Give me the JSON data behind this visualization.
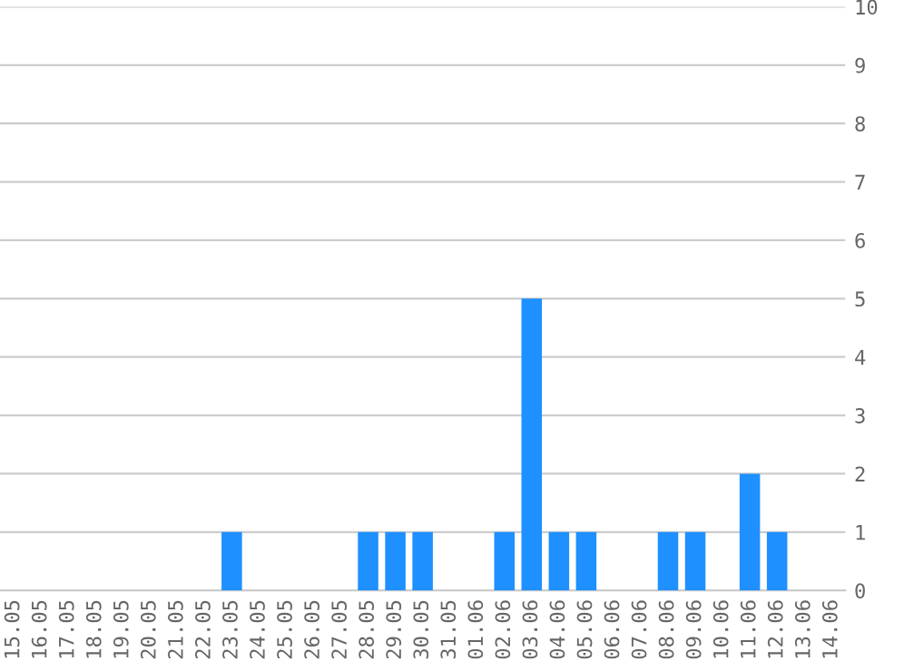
{
  "chart_data": {
    "type": "bar",
    "categories": [
      "15.05",
      "16.05",
      "17.05",
      "18.05",
      "19.05",
      "20.05",
      "21.05",
      "22.05",
      "23.05",
      "24.05",
      "25.05",
      "26.05",
      "27.05",
      "28.05",
      "29.05",
      "30.05",
      "31.05",
      "01.06",
      "02.06",
      "03.06",
      "04.06",
      "05.06",
      "06.06",
      "07.06",
      "08.06",
      "09.06",
      "10.06",
      "11.06",
      "12.06",
      "13.06",
      "14.06"
    ],
    "values": [
      0,
      0,
      0,
      0,
      0,
      0,
      0,
      0,
      1,
      0,
      0,
      0,
      0,
      1,
      1,
      1,
      0,
      0,
      1,
      5,
      1,
      1,
      0,
      0,
      1,
      1,
      0,
      2,
      1,
      0,
      0
    ],
    "color": "#1e90ff",
    "ylim": [
      0,
      10
    ],
    "yticks": [
      0,
      1,
      2,
      3,
      4,
      5,
      6,
      7,
      8,
      9,
      10
    ],
    "grid": "y"
  }
}
